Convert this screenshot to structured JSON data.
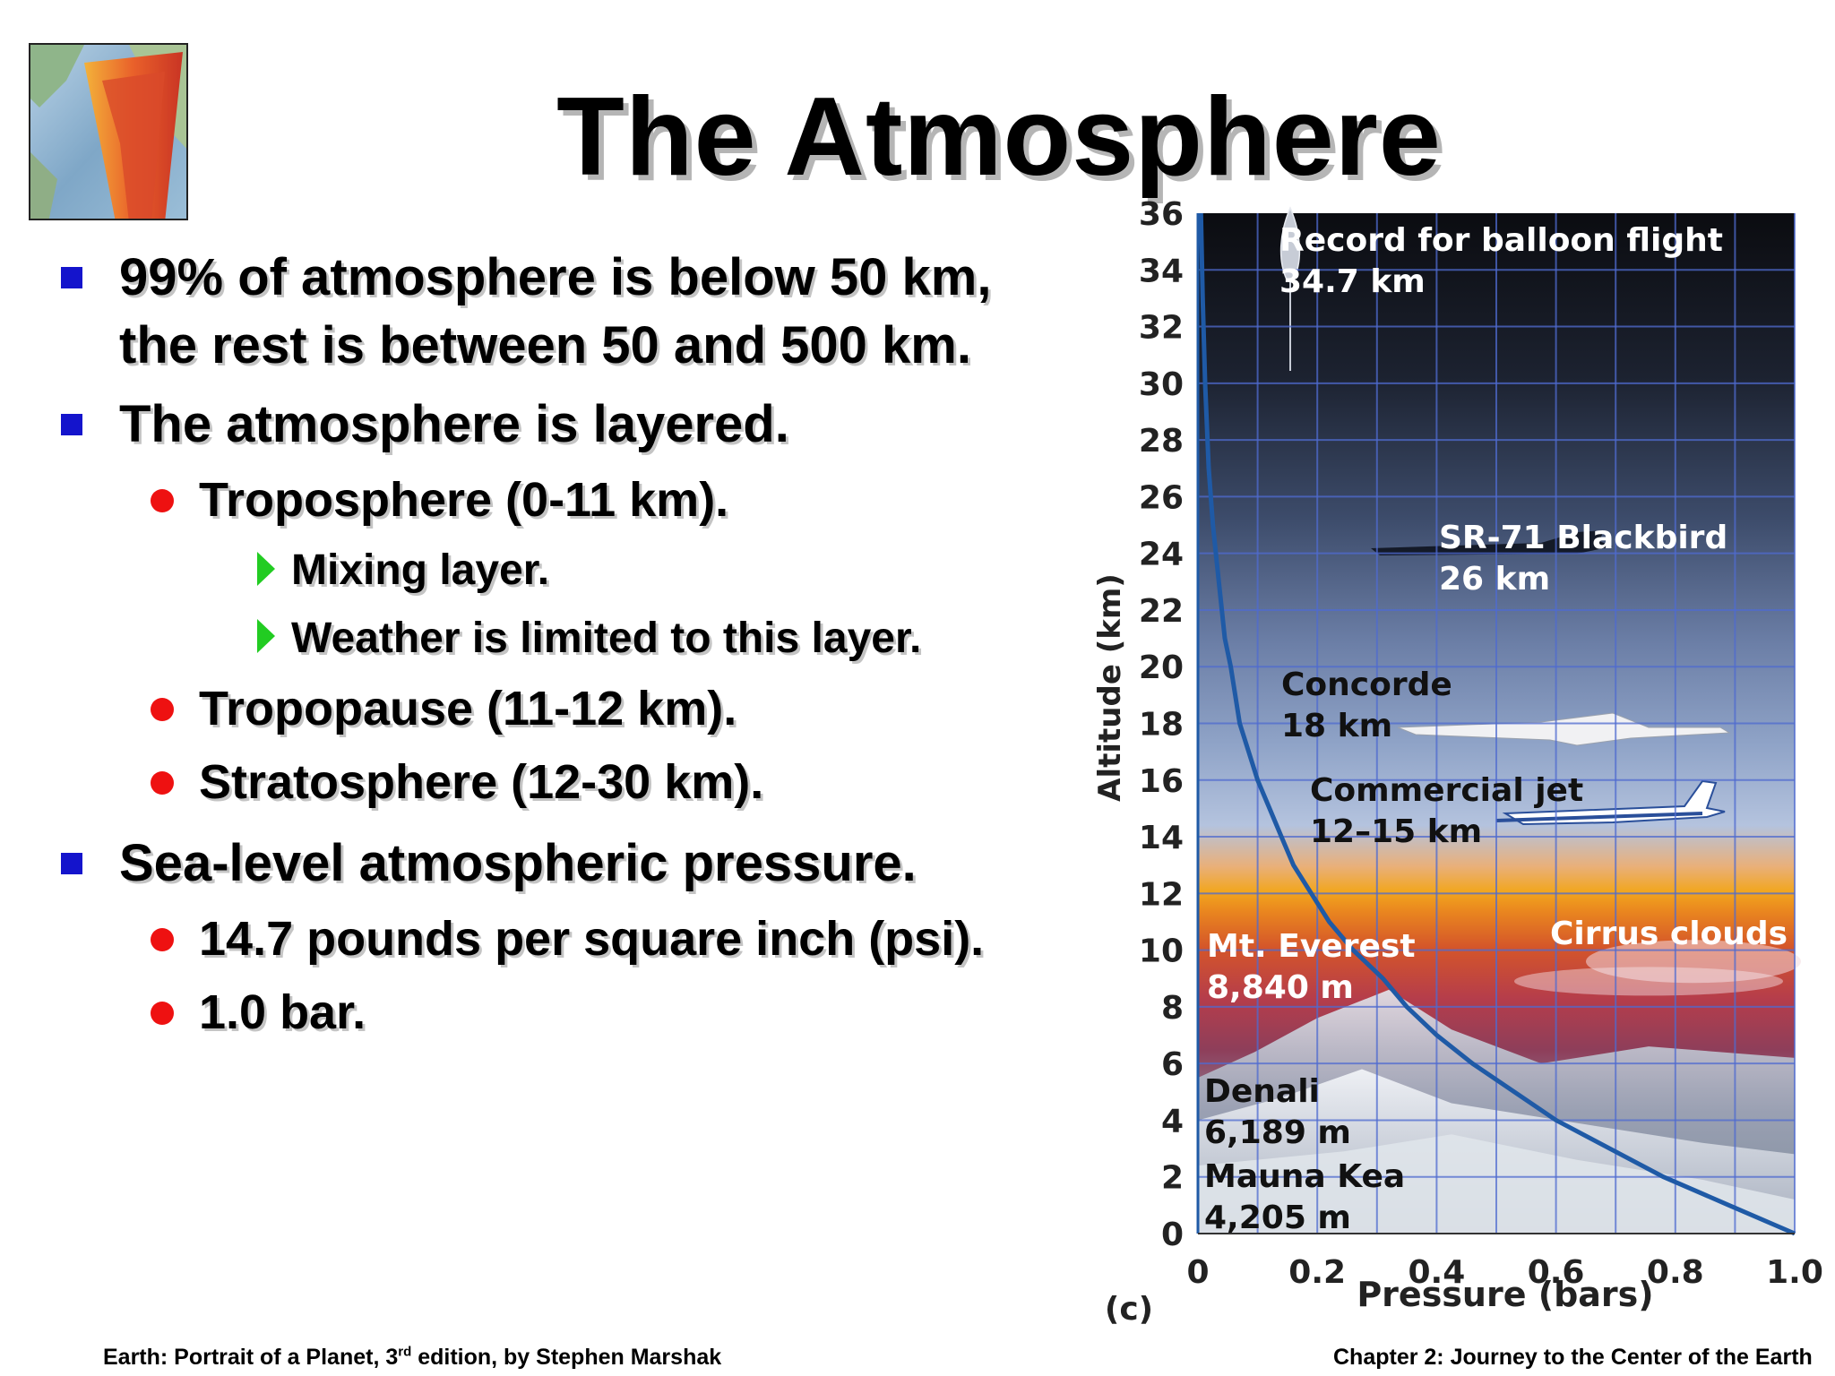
{
  "slide": {
    "title": "The Atmosphere",
    "bullets": [
      {
        "level": 1,
        "marker": "square",
        "text": "99% of atmosphere is below 50 km,"
      },
      {
        "level": 1,
        "marker": "none",
        "text": "the rest is between 50 and 500 km."
      },
      {
        "level": 1,
        "marker": "square",
        "text": "The atmosphere is layered."
      },
      {
        "level": 2,
        "marker": "dot",
        "text": "Troposphere (0-11 km)."
      },
      {
        "level": 3,
        "marker": "triangle",
        "text": "Mixing layer."
      },
      {
        "level": 3,
        "marker": "triangle",
        "text": "Weather is limited to this layer."
      },
      {
        "level": 2,
        "marker": "dot",
        "text": "Tropopause (11-12 km)."
      },
      {
        "level": 2,
        "marker": "dot",
        "text": "Stratosphere (12-30 km)."
      },
      {
        "level": 1,
        "marker": "square",
        "text": "Sea-level atmospheric pressure."
      },
      {
        "level": 2,
        "marker": "dot",
        "text": "14.7 pounds per square inch (psi)."
      },
      {
        "level": 2,
        "marker": "dot",
        "text": "1.0 bar."
      }
    ],
    "footer": {
      "left_pre": "Earth: Portrait of a Planet, 3",
      "left_sup": "rd",
      "left_post": " edition, by Stephen Marshak",
      "right": "Chapter 2: Journey to the Center of the Earth"
    },
    "colors": {
      "square": "#1414cc",
      "dot": "#ee1111",
      "triangle": "#22cc22"
    },
    "logo": {
      "icon": "earth-cross-section-icon"
    }
  },
  "chart_data": {
    "type": "line",
    "panel_label": "(c)",
    "xlabel": "Pressure (bars)",
    "ylabel": "Altitude (km)",
    "xlim": [
      0,
      1.0
    ],
    "ylim": [
      0,
      36
    ],
    "x_ticks": [
      "0",
      "0.2",
      "0.4",
      "0.6",
      "0.8",
      "1.0"
    ],
    "y_ticks": [
      "0",
      "2",
      "4",
      "6",
      "8",
      "10",
      "12",
      "14",
      "16",
      "18",
      "20",
      "22",
      "24",
      "26",
      "28",
      "30",
      "32",
      "34",
      "36"
    ],
    "grid": true,
    "series": [
      {
        "x": [
          1.0,
          0.89,
          0.78,
          0.69,
          0.6,
          0.53,
          0.46,
          0.4,
          0.35,
          0.31,
          0.26,
          0.22,
          0.19,
          0.16,
          0.14,
          0.12,
          0.1,
          0.085,
          0.07,
          0.055,
          0.045,
          0.035,
          0.025,
          0.018,
          0.012,
          0.008,
          0.005
        ],
        "y": [
          0,
          1,
          2,
          3,
          4,
          5,
          6,
          7,
          8,
          9,
          10,
          11,
          12,
          13,
          14,
          15,
          16,
          17,
          18,
          20,
          21,
          23,
          25,
          27,
          30,
          33,
          36
        ],
        "color": "#1f5aa6"
      }
    ],
    "annotations": [
      {
        "lines": [
          "Record for balloon flight",
          "34.7 km"
        ],
        "altitude_km": 34.7,
        "color": "#ffffff"
      },
      {
        "lines": [
          "SR-71 Blackbird",
          "26 km"
        ],
        "altitude_km": 26,
        "color": "#ffffff"
      },
      {
        "lines": [
          "Concorde",
          "18 km"
        ],
        "altitude_km": 18,
        "color": "#111111"
      },
      {
        "lines": [
          "Commercial jet",
          "12–15 km"
        ],
        "altitude_km": 13.5,
        "color": "#111111"
      },
      {
        "lines": [
          "Mt. Everest",
          "8,840 m"
        ],
        "altitude_km": 8.84,
        "color": "#ffffff"
      },
      {
        "lines": [
          "Cirrus clouds"
        ],
        "altitude_km": 10,
        "color": "#ffffff"
      },
      {
        "lines": [
          "Denali",
          "6,189 m"
        ],
        "altitude_km": 6.189,
        "color": "#111111"
      },
      {
        "lines": [
          "Mauna Kea",
          "4,205 m"
        ],
        "altitude_km": 4.205,
        "color": "#111111"
      }
    ]
  }
}
